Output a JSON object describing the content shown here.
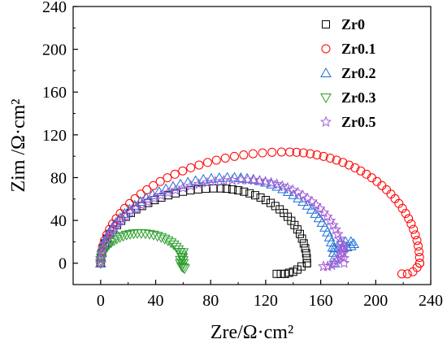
{
  "chart_data": {
    "type": "scatter",
    "xlabel": "Zre/Ω·cm²",
    "ylabel": "Zim /Ω·cm²",
    "xlim": [
      -20,
      240
    ],
    "ylim": [
      -20,
      240
    ],
    "x_ticks": [
      0,
      40,
      80,
      120,
      160,
      200,
      240
    ],
    "y_ticks": [
      0,
      40,
      80,
      120,
      160,
      200,
      240
    ],
    "x_tick_labels": [
      "0",
      "40",
      "80",
      "120",
      "160",
      "200",
      "240"
    ],
    "y_tick_labels": [
      "0",
      "40",
      "80",
      "120",
      "160",
      "200",
      "240"
    ],
    "legend_position": "top-right",
    "series": [
      {
        "name": "Zr0",
        "marker": "square",
        "color": "#000000",
        "arc": {
          "x0": 0,
          "x1": 150,
          "h": 70,
          "peak_x": 85,
          "n": 48
        },
        "tail": [
          [
            150,
            0
          ],
          [
            146,
            -3
          ],
          [
            143,
            -6
          ],
          [
            140,
            -8
          ],
          [
            137,
            -9
          ],
          [
            134,
            -10
          ],
          [
            131,
            -10
          ],
          [
            128,
            -10
          ]
        ]
      },
      {
        "name": "Zr0.1",
        "marker": "circle",
        "color": "#ff0000",
        "arc": {
          "x0": 0,
          "x1": 232,
          "h": 104,
          "peak_x": 135,
          "n": 62
        },
        "tail": [
          [
            232,
            0
          ],
          [
            230,
            -4
          ],
          [
            227,
            -8
          ],
          [
            223,
            -10
          ],
          [
            219,
            -10
          ]
        ]
      },
      {
        "name": "Zr0.2",
        "marker": "triangle-up",
        "color": "#1f6fd6",
        "arc": {
          "x0": 0,
          "x1": 170,
          "h": 80,
          "peak_x": 95,
          "n": 52
        },
        "tail": [
          [
            170,
            14
          ],
          [
            173,
            14
          ],
          [
            176,
            14
          ],
          [
            179,
            15
          ],
          [
            182,
            16
          ],
          [
            184,
            18
          ],
          [
            182,
            20
          ],
          [
            178,
            20
          ],
          [
            174,
            19
          ]
        ]
      },
      {
        "name": "Zr0.3",
        "marker": "triangle-down",
        "color": "#2a9d2a",
        "arc": {
          "x0": 0,
          "x1": 60,
          "h": 28,
          "peak_x": 28,
          "n": 34
        },
        "tail": [
          [
            60,
            10
          ],
          [
            59,
            6
          ],
          [
            58,
            3
          ],
          [
            58,
            0
          ],
          [
            59,
            -3
          ],
          [
            60,
            -4
          ],
          [
            61,
            -5
          ]
        ]
      },
      {
        "name": "Zr0.5",
        "marker": "star",
        "color": "#a35cd6",
        "arc": {
          "x0": 0,
          "x1": 177,
          "h": 78,
          "peak_x": 105,
          "n": 54
        },
        "tail": [
          [
            177,
            16
          ],
          [
            176,
            12
          ],
          [
            175,
            9
          ],
          [
            174,
            6
          ],
          [
            172,
            3
          ],
          [
            170,
            0
          ],
          [
            168,
            -2
          ],
          [
            165,
            -3
          ],
          [
            162,
            -3
          ]
        ]
      }
    ]
  }
}
